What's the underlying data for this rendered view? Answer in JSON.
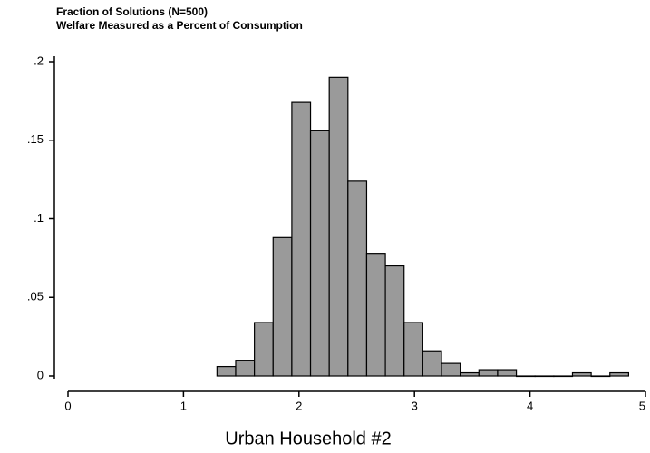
{
  "chart_data": {
    "type": "histogram",
    "title": "Fraction of Solutions (N=500)",
    "subtitle": "Welfare Measured as a Percent of Consumption",
    "x_label": "Urban Household #2",
    "bins": [
      1.29,
      1.452,
      1.614,
      1.776,
      1.938,
      2.1,
      2.262,
      2.424,
      2.586,
      2.748,
      2.91,
      3.072,
      3.234,
      3.396,
      3.558,
      3.72,
      3.882,
      4.044,
      4.206,
      4.368,
      4.53,
      4.692,
      4.854
    ],
    "values": [
      0.006,
      0.01,
      0.034,
      0.088,
      0.174,
      0.156,
      0.19,
      0.124,
      0.078,
      0.07,
      0.034,
      0.016,
      0.008,
      0.002,
      0.004,
      0.004,
      0,
      0,
      0,
      0.002,
      0,
      0.002
    ],
    "color": "#9a9a9a",
    "xlim": [
      0,
      5
    ],
    "xticks": [
      0,
      1,
      2,
      3,
      4,
      5
    ],
    "ylim": [
      0,
      0.2
    ],
    "yticks": [
      0,
      {
        "value": 0.05,
        "label": ".05"
      },
      {
        "value": 0.1,
        "label": ".1"
      },
      {
        "value": 0.15,
        "label": ".15"
      },
      {
        "value": 0.2,
        "label": ".2"
      }
    ]
  }
}
